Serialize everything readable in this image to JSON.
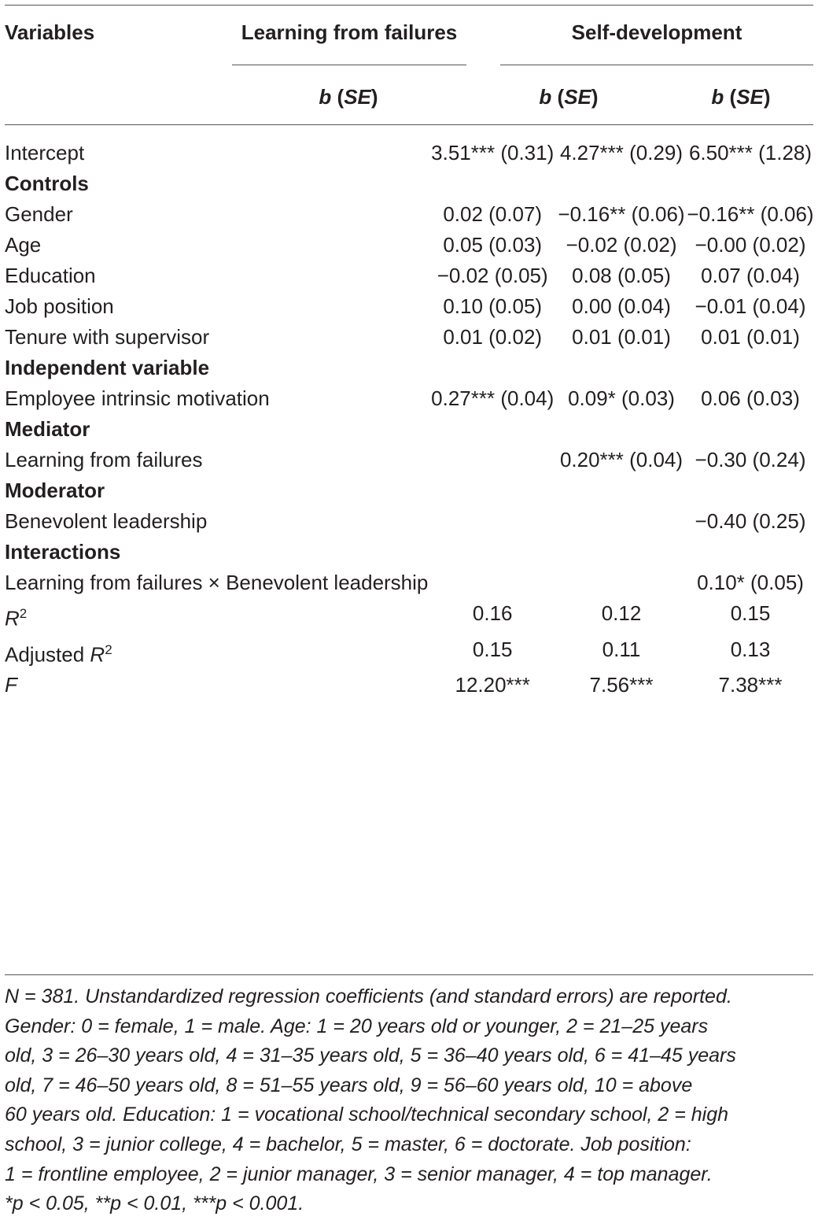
{
  "header": {
    "variables": "Variables",
    "group1": "Learning from failures",
    "group2": "Self-development",
    "sub_b": "b",
    "sub_se": "SE"
  },
  "rows": [
    {
      "label": "Intercept",
      "type": "data",
      "c1": "3.51*** (0.31)",
      "c2": "4.27*** (0.29)",
      "c3": "6.50*** (1.28)"
    },
    {
      "label": "Controls",
      "type": "section",
      "c1": "",
      "c2": "",
      "c3": ""
    },
    {
      "label": "Gender",
      "type": "data",
      "c1": "0.02 (0.07)",
      "c2": "−0.16** (0.06)",
      "c3": "−0.16** (0.06)"
    },
    {
      "label": "Age",
      "type": "data",
      "c1": "0.05 (0.03)",
      "c2": "−0.02 (0.02)",
      "c3": "−0.00 (0.02)"
    },
    {
      "label": "Education",
      "type": "data",
      "c1": "−0.02 (0.05)",
      "c2": "0.08 (0.05)",
      "c3": "0.07 (0.04)"
    },
    {
      "label": "Job position",
      "type": "data",
      "c1": "0.10 (0.05)",
      "c2": "0.00 (0.04)",
      "c3": "−0.01 (0.04)"
    },
    {
      "label": "Tenure with supervisor",
      "type": "data",
      "c1": "0.01 (0.02)",
      "c2": "0.01 (0.01)",
      "c3": "0.01 (0.01)"
    },
    {
      "label": "Independent variable",
      "type": "section",
      "c1": "",
      "c2": "",
      "c3": ""
    },
    {
      "label": "Employee intrinsic motivation",
      "type": "data",
      "c1": "0.27*** (0.04)",
      "c2": "0.09* (0.03)",
      "c3": "0.06 (0.03)"
    },
    {
      "label": "Mediator",
      "type": "section",
      "c1": "",
      "c2": "",
      "c3": ""
    },
    {
      "label": "Learning from failures",
      "type": "data",
      "c1": "",
      "c2": "0.20*** (0.04)",
      "c3": "−0.30 (0.24)"
    },
    {
      "label": "Moderator",
      "type": "section",
      "c1": "",
      "c2": "",
      "c3": ""
    },
    {
      "label": "Benevolent leadership",
      "type": "data",
      "c1": "",
      "c2": "",
      "c3": "−0.40 (0.25)"
    },
    {
      "label": "Interactions",
      "type": "section",
      "c1": "",
      "c2": "",
      "c3": ""
    },
    {
      "label": "Learning from failures × Benevolent leadership",
      "type": "data",
      "c1": "",
      "c2": "",
      "c3": "0.10* (0.05)"
    }
  ],
  "fit": {
    "r2": {
      "label_italic": "R",
      "label_sup": "2",
      "c1": "0.16",
      "c2": "0.12",
      "c3": "0.15"
    },
    "adj_r2": {
      "label_prefix": "Adjusted ",
      "label_italic": "R",
      "label_sup": "2",
      "c1": "0.15",
      "c2": "0.11",
      "c3": "0.13"
    },
    "f": {
      "label_italic": "F",
      "c1": "12.20***",
      "c2": "7.56***",
      "c3": "7.38***"
    }
  },
  "footnote": {
    "line1": "N = 381. Unstandardized regression coefficients (and standard errors) are reported.",
    "line2": "Gender: 0 = female, 1 = male. Age: 1 = 20 years old or younger, 2 = 21–25 years",
    "line3": "old, 3 = 26–30 years old, 4 = 31–35 years old, 5 = 36–40 years old, 6 = 41–45 years",
    "line4": "old, 7 = 46–50 years old, 8 = 51–55 years old, 9 = 56–60 years old, 10 = above",
    "line5": "60 years old. Education: 1 = vocational school/technical secondary school, 2 = high",
    "line6": "school, 3 = junior college, 4 = bachelor, 5 = master, 6 = doctorate. Job position:",
    "line7": "1 = frontline employee, 2 = junior manager, 3 = senior manager, 4 = top manager.",
    "line8": "*p < 0.05, **p < 0.01, ***p < 0.001."
  }
}
